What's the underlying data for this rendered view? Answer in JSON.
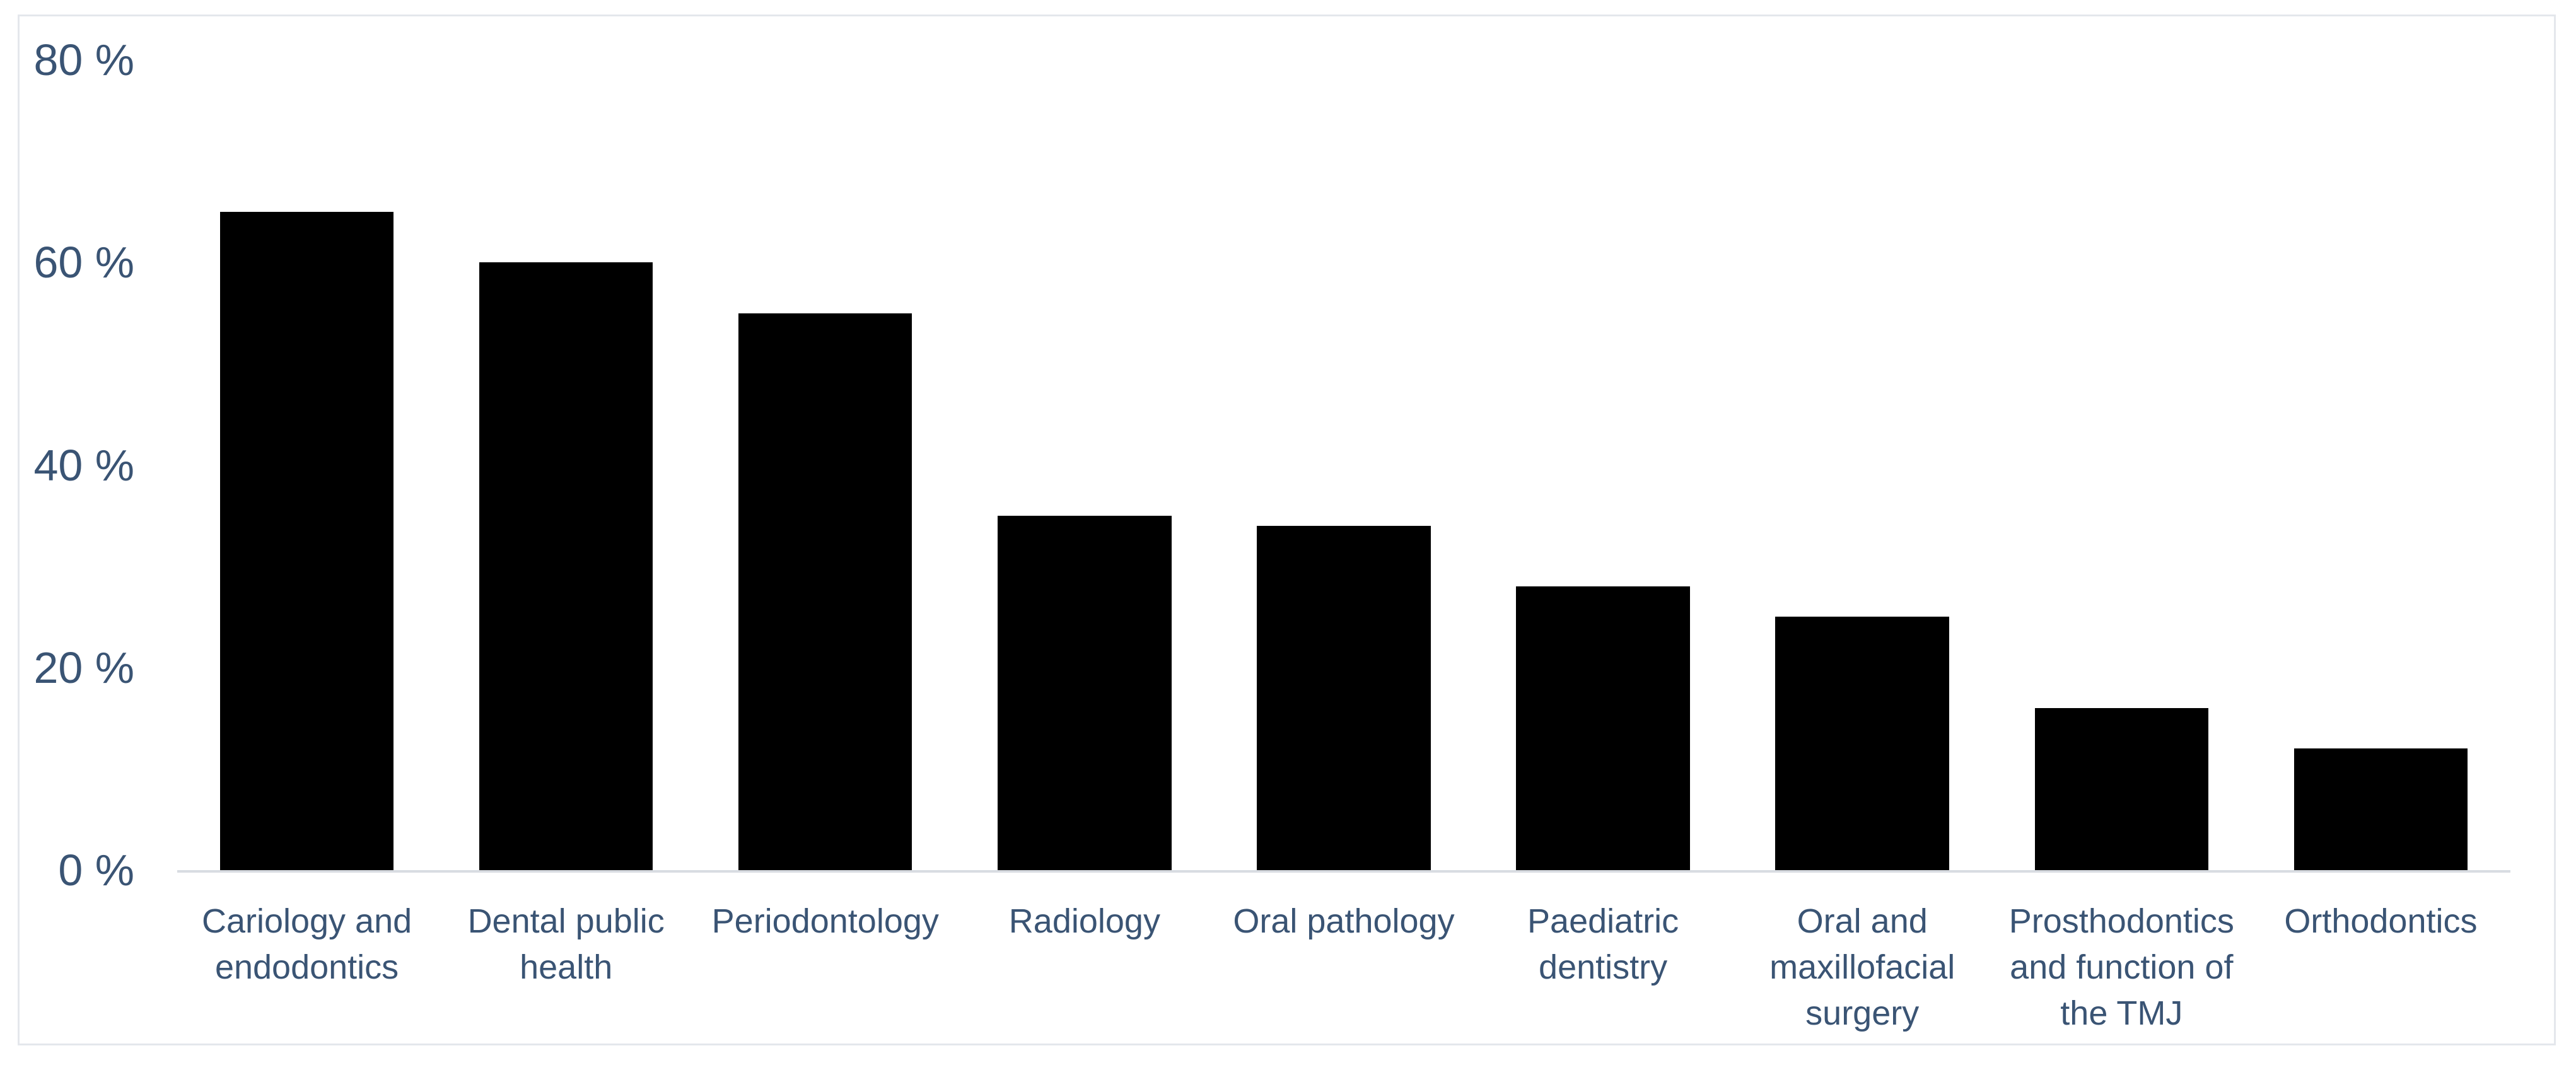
{
  "chart_data": {
    "type": "bar",
    "title": "",
    "xlabel": "",
    "ylabel": "",
    "categories": [
      "Cariology and endodontics",
      "Dental public health",
      "Periodontology",
      "Radiology",
      "Oral pathology",
      "Paediatric dentistry",
      "Oral and maxillofacial surgery",
      "Prosthodontics and function of the TMJ",
      "Orthodontics"
    ],
    "values": [
      65,
      60,
      55,
      35,
      34,
      28,
      25,
      16,
      12
    ],
    "unit": "%",
    "ylim": [
      0,
      80
    ],
    "yticks": [
      {
        "value": 0,
        "label": "0 %"
      },
      {
        "value": 20,
        "label": "20 %"
      },
      {
        "value": 40,
        "label": "40 %"
      },
      {
        "value": 60,
        "label": "60 %"
      },
      {
        "value": 80,
        "label": "80 %"
      }
    ],
    "grid": false,
    "legend": false,
    "colors": {
      "bar": "#000000",
      "text": "#3a5474",
      "axis_line": "#d8dce2",
      "frame_border": "#e4e7ec",
      "background": "#ffffff"
    }
  }
}
